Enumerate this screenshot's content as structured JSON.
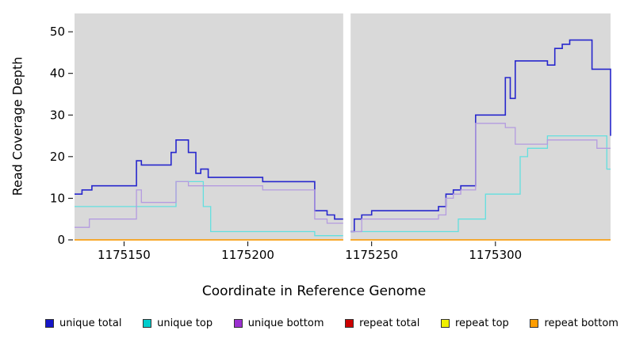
{
  "chart_data": {
    "type": "line",
    "subtype": "step-coverage",
    "title": "",
    "xlabel": "Coordinate in Reference Genome",
    "ylabel": "Read Coverage Depth",
    "xlim": [
      1175130,
      1175346.5
    ],
    "ylim": [
      0,
      54.4
    ],
    "x_ticks": [
      1175150,
      1175200,
      1175250,
      1175300
    ],
    "y_ticks": [
      0,
      10,
      20,
      30,
      40,
      50
    ],
    "panel_color": "#d9d9d9",
    "gap": [
      1175238.5,
      1175241.5
    ],
    "series": [
      {
        "id": "unique-total",
        "label": "unique total",
        "color": "#1616c8",
        "line_color": "#2727cd",
        "width": 1.6,
        "segments": [
          [
            [
              1175130,
              11
            ],
            [
              1175133,
              12
            ],
            [
              1175137,
              13
            ],
            [
              1175155,
              19
            ],
            [
              1175157,
              18
            ],
            [
              1175169,
              21
            ],
            [
              1175171,
              24
            ],
            [
              1175176,
              21
            ],
            [
              1175179,
              16
            ],
            [
              1175181,
              17
            ],
            [
              1175184,
              15
            ],
            [
              1175206,
              14
            ],
            [
              1175227,
              7
            ],
            [
              1175232,
              6
            ],
            [
              1175235,
              5
            ],
            [
              1175238.5,
              5
            ]
          ],
          [
            [
              1175241.5,
              2
            ],
            [
              1175243,
              5
            ],
            [
              1175246,
              6
            ],
            [
              1175250,
              7
            ],
            [
              1175277,
              8
            ],
            [
              1175280,
              11
            ],
            [
              1175283,
              12
            ],
            [
              1175286,
              13
            ],
            [
              1175292,
              30
            ],
            [
              1175304,
              39
            ],
            [
              1175306,
              34
            ],
            [
              1175308,
              43
            ],
            [
              1175321,
              42
            ],
            [
              1175324,
              46
            ],
            [
              1175327,
              47
            ],
            [
              1175330,
              48
            ],
            [
              1175339,
              41
            ],
            [
              1175346.5,
              25
            ]
          ]
        ]
      },
      {
        "id": "unique-top",
        "label": "unique top",
        "color": "#00cdcd",
        "line_color": "#63dfdf",
        "width": 1.3,
        "segments": [
          [
            [
              1175130,
              8
            ],
            [
              1175171,
              14
            ],
            [
              1175182,
              8
            ],
            [
              1175185,
              2
            ],
            [
              1175227,
              1
            ],
            [
              1175238.5,
              1
            ]
          ],
          [
            [
              1175241.5,
              2
            ],
            [
              1175285,
              5
            ],
            [
              1175296,
              11
            ],
            [
              1175310,
              20
            ],
            [
              1175313,
              22
            ],
            [
              1175321,
              25
            ],
            [
              1175345,
              17
            ],
            [
              1175346.5,
              17
            ]
          ]
        ]
      },
      {
        "id": "unique-bottom",
        "label": "unique bottom",
        "color": "#9b30d0",
        "line_color": "#b49be0",
        "width": 1.3,
        "segments": [
          [
            [
              1175130,
              3
            ],
            [
              1175136,
              5
            ],
            [
              1175155,
              12
            ],
            [
              1175157,
              9
            ],
            [
              1175171,
              14
            ],
            [
              1175176,
              13
            ],
            [
              1175206,
              12
            ],
            [
              1175227,
              5
            ],
            [
              1175232,
              4
            ],
            [
              1175238.5,
              4
            ]
          ],
          [
            [
              1175241.5,
              2
            ],
            [
              1175246,
              5
            ],
            [
              1175277,
              6
            ],
            [
              1175280,
              10
            ],
            [
              1175283,
              11
            ],
            [
              1175286,
              12
            ],
            [
              1175292,
              28
            ],
            [
              1175304,
              27
            ],
            [
              1175308,
              23
            ],
            [
              1175321,
              24
            ],
            [
              1175341,
              22
            ],
            [
              1175346.5,
              22
            ]
          ]
        ]
      },
      {
        "id": "repeat-total",
        "label": "repeat total",
        "color": "#cc0000",
        "line_color": "#cc0000",
        "width": 1.3,
        "segments": [
          [
            [
              1175130,
              0
            ],
            [
              1175238.5,
              0
            ]
          ],
          [
            [
              1175241.5,
              0
            ],
            [
              1175346.5,
              0
            ]
          ]
        ]
      },
      {
        "id": "repeat-top",
        "label": "repeat top",
        "color": "#f0f000",
        "line_color": "#f0f000",
        "width": 1.3,
        "segments": [
          [
            [
              1175130,
              0
            ],
            [
              1175238.5,
              0
            ]
          ],
          [
            [
              1175241.5,
              0
            ],
            [
              1175346.5,
              0
            ]
          ]
        ]
      },
      {
        "id": "repeat-bottom",
        "label": "repeat bottom",
        "color": "#ff9d00",
        "line_color": "#ff9d00",
        "width": 1.3,
        "segments": [
          [
            [
              1175130,
              0
            ],
            [
              1175238.5,
              0
            ]
          ],
          [
            [
              1175241.5,
              0
            ],
            [
              1175346.5,
              0
            ]
          ]
        ]
      }
    ]
  }
}
